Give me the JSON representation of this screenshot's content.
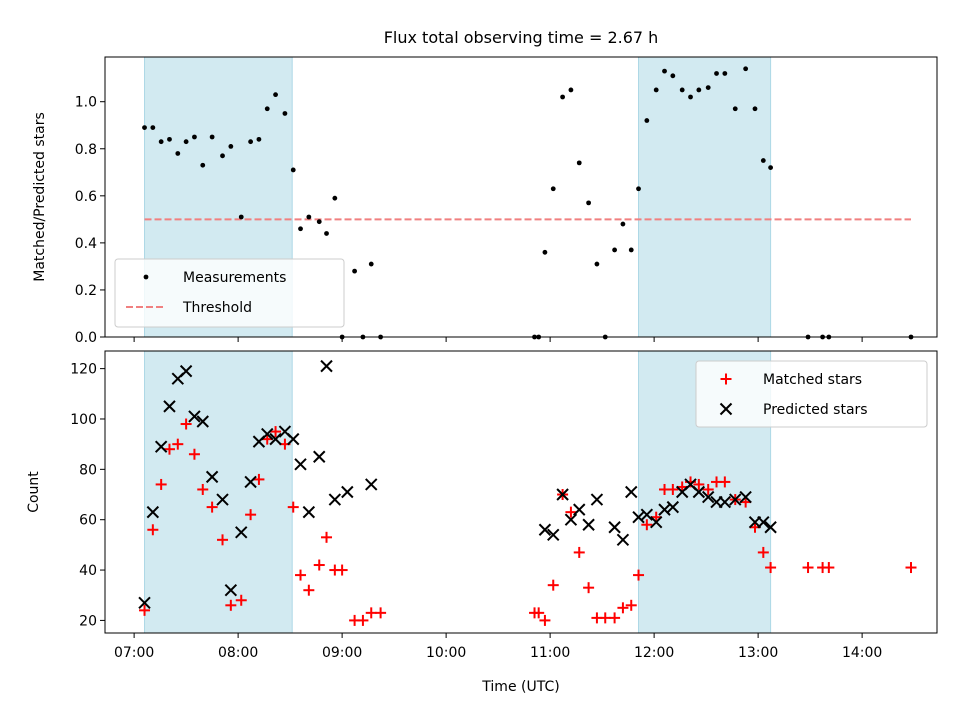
{
  "chart_data": [
    {
      "type": "scatter",
      "title": "Flux total observing time = 2.67 h",
      "ylabel": "Matched/Predicted stars",
      "xlabel": "",
      "x_unit": "hours UTC",
      "xlim": [
        6.72,
        14.72
      ],
      "ylim": [
        0,
        1.19
      ],
      "yticks": [
        0.0,
        0.2,
        0.4,
        0.6,
        0.8,
        1.0
      ],
      "ytick_labels": [
        "0.0",
        "0.2",
        "0.4",
        "0.6",
        "0.8",
        "1.0"
      ],
      "shaded_intervals": [
        [
          7.1,
          8.52
        ],
        [
          11.85,
          13.12
        ]
      ],
      "threshold": {
        "name": "Threshold",
        "value": 0.5,
        "x_range": [
          7.1,
          14.47
        ],
        "color": "#f08080"
      },
      "series": [
        {
          "name": "Measurements",
          "color": "#000000",
          "x": [
            7.1,
            7.18,
            7.26,
            7.34,
            7.42,
            7.5,
            7.58,
            7.66,
            7.75,
            7.85,
            7.93,
            8.03,
            8.12,
            8.2,
            8.28,
            8.36,
            8.45,
            8.53,
            8.6,
            8.68,
            8.78,
            8.85,
            8.93,
            9.0,
            9.12,
            9.2,
            9.28,
            9.37,
            10.85,
            10.89,
            10.95,
            11.03,
            11.12,
            11.2,
            11.28,
            11.37,
            11.45,
            11.53,
            11.62,
            11.7,
            11.78,
            11.85,
            11.93,
            12.02,
            12.1,
            12.18,
            12.27,
            12.35,
            12.43,
            12.52,
            12.6,
            12.68,
            12.78,
            12.88,
            12.97,
            13.05,
            13.12,
            13.48,
            13.62,
            13.68,
            14.47
          ],
          "y": [
            0.89,
            0.89,
            0.83,
            0.84,
            0.78,
            0.83,
            0.85,
            0.73,
            0.85,
            0.77,
            0.81,
            0.51,
            0.83,
            0.84,
            0.97,
            1.03,
            0.95,
            0.71,
            0.46,
            0.51,
            0.49,
            0.44,
            0.59,
            0.0,
            0.28,
            0.0,
            0.31,
            0.0,
            0.0,
            0.0,
            0.36,
            0.63,
            1.02,
            1.05,
            0.74,
            0.57,
            0.31,
            0.0,
            0.37,
            0.48,
            0.37,
            0.63,
            0.92,
            1.05,
            1.13,
            1.11,
            1.05,
            1.02,
            1.05,
            1.06,
            1.12,
            1.12,
            0.97,
            1.14,
            0.97,
            0.75,
            0.72,
            0.0,
            0.0,
            0.0,
            0.0
          ]
        }
      ],
      "legend": [
        "Measurements",
        "Threshold"
      ],
      "legend_position": "lower-left"
    },
    {
      "type": "scatter",
      "title": "",
      "ylabel": "Count",
      "xlabel": "Time (UTC)",
      "x_unit": "hours UTC",
      "xlim": [
        6.72,
        14.72
      ],
      "ylim": [
        15,
        127
      ],
      "yticks": [
        20,
        40,
        60,
        80,
        100,
        120
      ],
      "ytick_labels": [
        "20",
        "40",
        "60",
        "80",
        "100",
        "120"
      ],
      "xticks": [
        7,
        8,
        9,
        10,
        11,
        12,
        13,
        14
      ],
      "xtick_labels": [
        "07:00",
        "08:00",
        "09:00",
        "10:00",
        "11:00",
        "12:00",
        "13:00",
        "14:00"
      ],
      "shaded_intervals": [
        [
          7.1,
          8.52
        ],
        [
          11.85,
          13.12
        ]
      ],
      "series": [
        {
          "name": "Matched stars",
          "marker": "+",
          "color": "#ff0000",
          "x": [
            7.1,
            7.18,
            7.26,
            7.34,
            7.42,
            7.5,
            7.58,
            7.66,
            7.75,
            7.85,
            7.93,
            8.03,
            8.12,
            8.2,
            8.28,
            8.36,
            8.45,
            8.53,
            8.6,
            8.68,
            8.78,
            8.85,
            8.93,
            9.0,
            9.12,
            9.2,
            9.28,
            9.37,
            10.85,
            10.89,
            10.95,
            11.03,
            11.12,
            11.2,
            11.28,
            11.37,
            11.45,
            11.53,
            11.62,
            11.7,
            11.78,
            11.85,
            11.93,
            12.02,
            12.1,
            12.18,
            12.27,
            12.35,
            12.43,
            12.52,
            12.6,
            12.68,
            12.78,
            12.88,
            12.97,
            13.05,
            13.12,
            13.48,
            13.62,
            13.68,
            14.47
          ],
          "y": [
            24,
            56,
            74,
            88,
            90,
            98,
            86,
            72,
            65,
            52,
            26,
            28,
            62,
            76,
            92,
            95,
            90,
            65,
            38,
            32,
            42,
            53,
            40,
            40,
            20,
            20,
            23,
            23,
            23,
            23,
            20,
            34,
            70,
            63,
            47,
            33,
            21,
            21,
            21,
            25,
            26,
            38,
            58,
            61,
            72,
            72,
            73,
            75,
            74,
            72,
            75,
            75,
            68,
            67,
            57,
            47,
            41,
            41,
            41,
            41,
            41
          ]
        },
        {
          "name": "Predicted stars",
          "marker": "x",
          "color": "#000000",
          "x": [
            7.1,
            7.18,
            7.26,
            7.34,
            7.42,
            7.5,
            7.58,
            7.66,
            7.75,
            7.85,
            7.93,
            8.03,
            8.12,
            8.2,
            8.28,
            8.36,
            8.45,
            8.53,
            8.6,
            8.68,
            8.78,
            8.85,
            8.93,
            9.05,
            9.28,
            10.95,
            11.03,
            11.12,
            11.2,
            11.28,
            11.37,
            11.45,
            11.62,
            11.7,
            11.78,
            11.85,
            11.93,
            12.02,
            12.1,
            12.18,
            12.27,
            12.35,
            12.43,
            12.52,
            12.6,
            12.68,
            12.78,
            12.88,
            12.97,
            13.05,
            13.12
          ],
          "y": [
            27,
            63,
            89,
            105,
            116,
            119,
            101,
            99,
            77,
            68,
            32,
            55,
            75,
            91,
            94,
            92,
            95,
            92,
            82,
            63,
            85,
            121,
            68,
            71,
            74,
            56,
            54,
            70,
            60,
            64,
            58,
            68,
            57,
            52,
            71,
            61,
            62,
            59,
            64,
            65,
            71,
            74,
            71,
            69,
            67,
            67,
            68,
            69,
            59,
            59,
            57
          ]
        }
      ],
      "legend": [
        "Matched stars",
        "Predicted stars"
      ],
      "legend_position": "upper-right"
    }
  ],
  "colors": {
    "shade": "#add8e6",
    "matched": "#ff0000",
    "predicted": "#000000",
    "measurements": "#000000",
    "threshold": "#f08080"
  }
}
